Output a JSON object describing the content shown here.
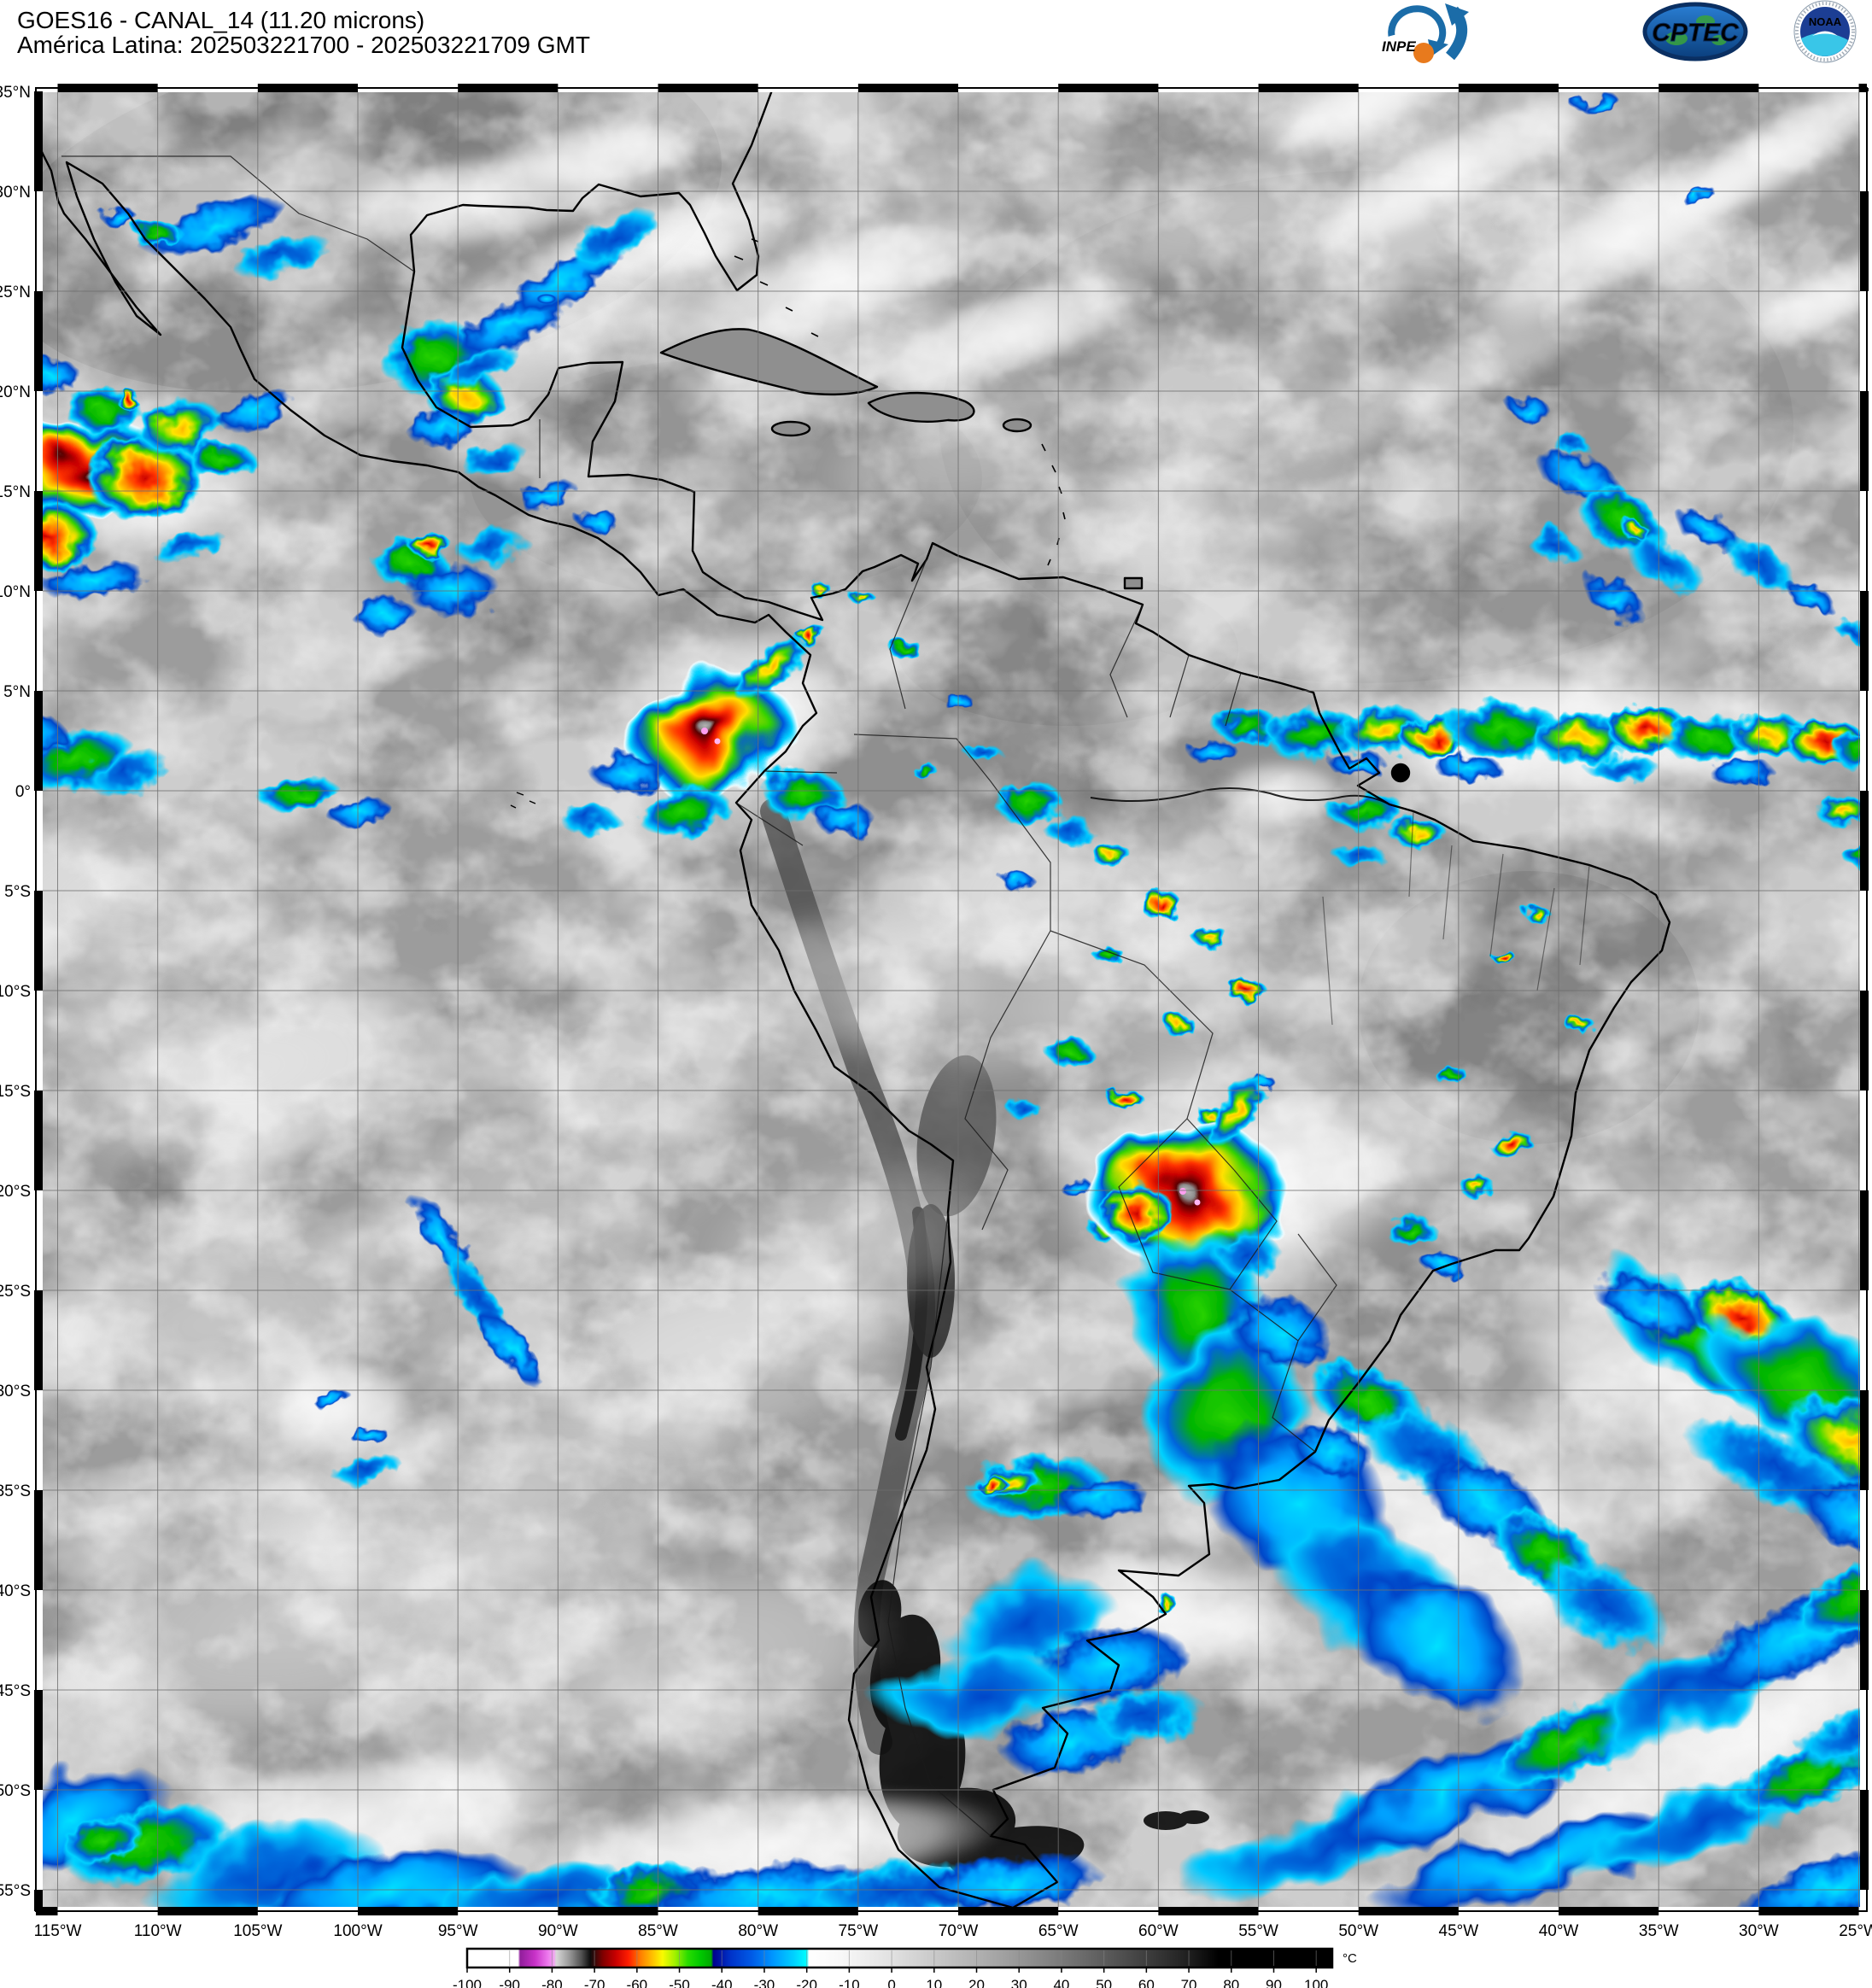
{
  "header": {
    "line1": "GOES16 - CANAL_14 (11.20 microns)",
    "line2": "América Latina: 202503221700 - 202503221709 GMT"
  },
  "logos": {
    "inpe": "INPE",
    "cptec": "CPTEC",
    "noaa": "NOAA"
  },
  "map": {
    "lat_labels": [
      "35°N",
      "30°N",
      "25°N",
      "20°N",
      "15°N",
      "10°N",
      "5°N",
      "0°",
      "5°S",
      "10°S",
      "15°S",
      "20°S",
      "25°S",
      "30°S",
      "35°S",
      "40°S",
      "45°S",
      "50°S",
      "55°S"
    ],
    "lon_labels": [
      "115°W",
      "110°W",
      "105°W",
      "100°W",
      "95°W",
      "90°W",
      "85°W",
      "80°W",
      "75°W",
      "70°W",
      "65°W",
      "60°W",
      "55°W",
      "50°W",
      "45°W",
      "40°W",
      "35°W",
      "30°W",
      "25°W"
    ]
  },
  "colorbar": {
    "unit": "°C",
    "min": -100,
    "max": 100,
    "step": 10,
    "ticks": [
      "-100",
      "-90",
      "-80",
      "-70",
      "-60",
      "-50",
      "-40",
      "-30",
      "-20",
      "-10",
      "0",
      "10",
      "20",
      "30",
      "40",
      "50",
      "60",
      "70",
      "80",
      "90",
      "100"
    ],
    "stops": [
      [
        -100,
        "#ffffff"
      ],
      [
        -88,
        "#ffffff"
      ],
      [
        -87.5,
        "#911e9b"
      ],
      [
        -84,
        "#c832c8"
      ],
      [
        -81,
        "#ed78ed"
      ],
      [
        -79.5,
        "#f0a6f0"
      ],
      [
        -79,
        "#d7d7d7"
      ],
      [
        -76,
        "#9b9b9b"
      ],
      [
        -73,
        "#4f4f4f"
      ],
      [
        -71,
        "#0d0d0d"
      ],
      [
        -68,
        "#800000"
      ],
      [
        -65,
        "#c80000"
      ],
      [
        -62,
        "#ff1e00"
      ],
      [
        -59,
        "#ff8200"
      ],
      [
        -56,
        "#ffc800"
      ],
      [
        -54,
        "#fafa00"
      ],
      [
        -51,
        "#a0f000"
      ],
      [
        -48,
        "#28dc00"
      ],
      [
        -45,
        "#00c800"
      ],
      [
        -42.5,
        "#00a800"
      ],
      [
        -42,
        "#00008c"
      ],
      [
        -38,
        "#0032c8"
      ],
      [
        -33,
        "#005ae6"
      ],
      [
        -28,
        "#0096ff"
      ],
      [
        -23,
        "#00d2ff"
      ],
      [
        -20,
        "#00ffff"
      ],
      [
        -19.5,
        "#ffffff"
      ],
      [
        -12,
        "#f8f8f8"
      ],
      [
        0,
        "#e1e1e1"
      ],
      [
        10,
        "#c9c9c9"
      ],
      [
        20,
        "#b1b1b1"
      ],
      [
        30,
        "#979797"
      ],
      [
        40,
        "#7a7a7a"
      ],
      [
        50,
        "#5c5c5c"
      ],
      [
        60,
        "#3e3e3e"
      ],
      [
        70,
        "#1f1f1f"
      ],
      [
        77,
        "#000000"
      ],
      [
        100,
        "#000000"
      ]
    ]
  }
}
